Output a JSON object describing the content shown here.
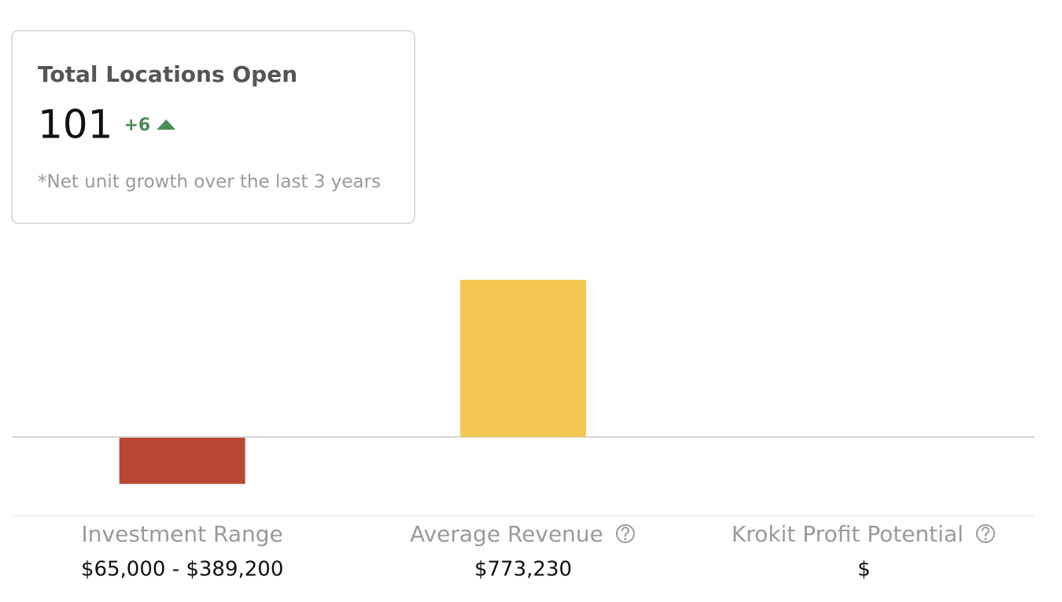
{
  "card": {
    "title": "Total Locations Open",
    "value": "101",
    "change": "+6",
    "note": "*Net unit growth over the last 3 years"
  },
  "chart_data": {
    "type": "bar",
    "categories": [
      "Investment Range",
      "Average Revenue",
      "Krokit Profit Potential"
    ],
    "values": [
      -227100,
      773230,
      null
    ],
    "colors": [
      "#b94735",
      "#f4c752",
      "#6a9bd1"
    ],
    "amounts": [
      "$65,000 - $389,200",
      "$773,230",
      "$"
    ],
    "help": [
      false,
      true,
      true
    ]
  }
}
